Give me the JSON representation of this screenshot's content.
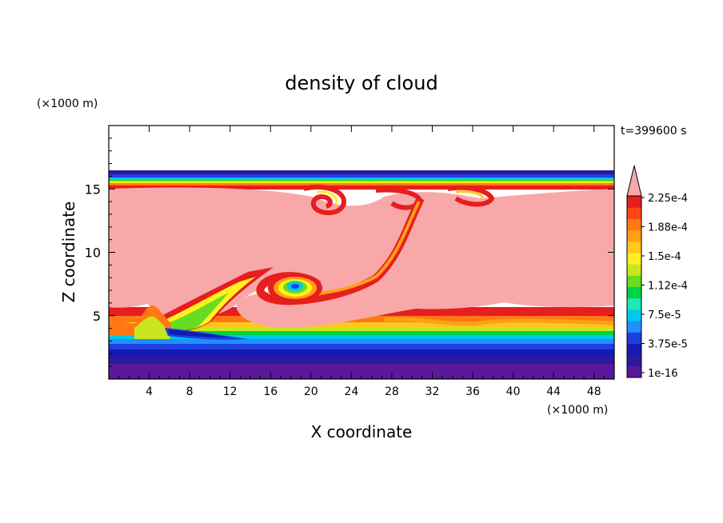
{
  "chart_data": {
    "type": "heatmap",
    "title": "density of cloud",
    "xlabel": "X coordinate",
    "ylabel": "Z coordinate",
    "x_unit": "(×1000 m)",
    "y_unit": "(×1000 m)",
    "time_label": "t=399600 s",
    "xlim": [
      0,
      50
    ],
    "ylim": [
      0,
      20
    ],
    "x_ticks": [
      4,
      8,
      12,
      16,
      20,
      24,
      28,
      32,
      36,
      40,
      44,
      48
    ],
    "y_ticks": [
      5,
      10,
      15
    ],
    "colorbar": {
      "labels": [
        "1e-16",
        "3.75e-5",
        "7.5e-5",
        "1.12e-4",
        "1.5e-4",
        "1.88e-4",
        "2.25e-4"
      ],
      "over_color": "#f8a8a8",
      "colors": [
        "#5a189a",
        "#2b1a9e",
        "#141ab3",
        "#1e40e0",
        "#1e90ff",
        "#00c8e8",
        "#1de9b6",
        "#00d24a",
        "#66dd22",
        "#c8e61e",
        "#fff01e",
        "#ffc81e",
        "#ffa014",
        "#ff7814",
        "#ff4614",
        "#e61e1e"
      ]
    },
    "features": [
      {
        "name": "saturated cloud layer",
        "z_range": [
          5,
          15
        ],
        "color": "#f8a8a8"
      },
      {
        "name": "rotating vortex",
        "center": [
          18.5,
          7.2
        ]
      },
      {
        "name": "cloud top edge",
        "z": 16.2
      }
    ]
  }
}
